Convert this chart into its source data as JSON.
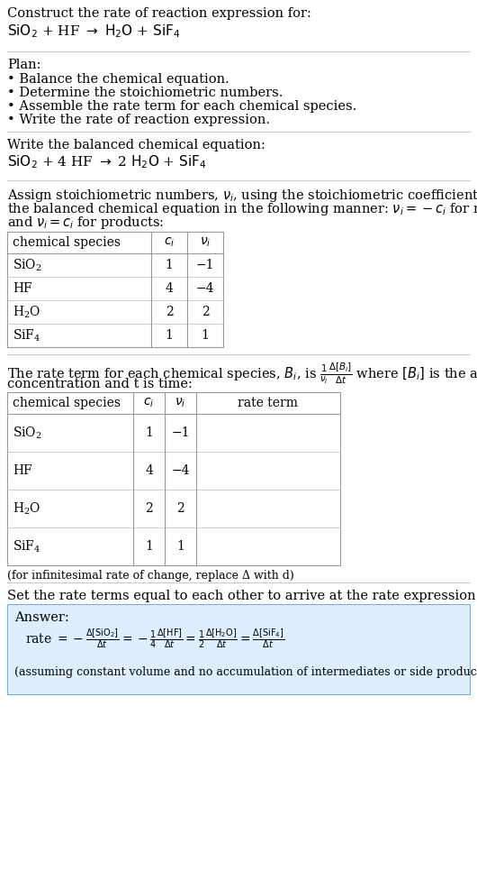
{
  "bg_color": "#ffffff",
  "answer_bg_color": "#ddeeff",
  "title_text": "Construct the rate of reaction expression for:",
  "section_divider_color": "#cccccc",
  "plan_title": "Plan:",
  "plan_items": [
    "• Balance the chemical equation.",
    "• Determine the stoichiometric numbers.",
    "• Assemble the rate term for each chemical species.",
    "• Write the rate of reaction expression."
  ],
  "balanced_label": "Write the balanced chemical equation:",
  "stoich_line1": "Assign stoichiometric numbers, ν_i, using the stoichiometric coefficients, c_i, from",
  "stoich_line2": "the balanced chemical equation in the following manner: ν_i = −c_i for reactants",
  "stoich_line3": "and ν_i = c_i for products:",
  "table1_rows": [
    [
      "SiO_2",
      "1",
      "−1"
    ],
    [
      "HF",
      "4",
      "−4"
    ],
    [
      "H_2O",
      "2",
      "2"
    ],
    [
      "SiF_4",
      "1",
      "1"
    ]
  ],
  "rate_line1": "The rate term for each chemical species, B_i, is",
  "rate_line2": "concentration and t is time:",
  "table2_rows": [
    [
      "SiO_2",
      "1",
      "−1"
    ],
    [
      "HF",
      "4",
      "−4"
    ],
    [
      "H_2O",
      "2",
      "2"
    ],
    [
      "SiF_4",
      "1",
      "1"
    ]
  ],
  "infinitesimal_note": "(for infinitesimal rate of change, replace Δ with d)",
  "set_equal_label": "Set the rate terms equal to each other to arrive at the rate expression:",
  "answer_label": "Answer:",
  "answer_note": "(assuming constant volume and no accumulation of intermediates or side products)",
  "table_border_color": "#999999",
  "table_divider_color": "#bbbbbb"
}
